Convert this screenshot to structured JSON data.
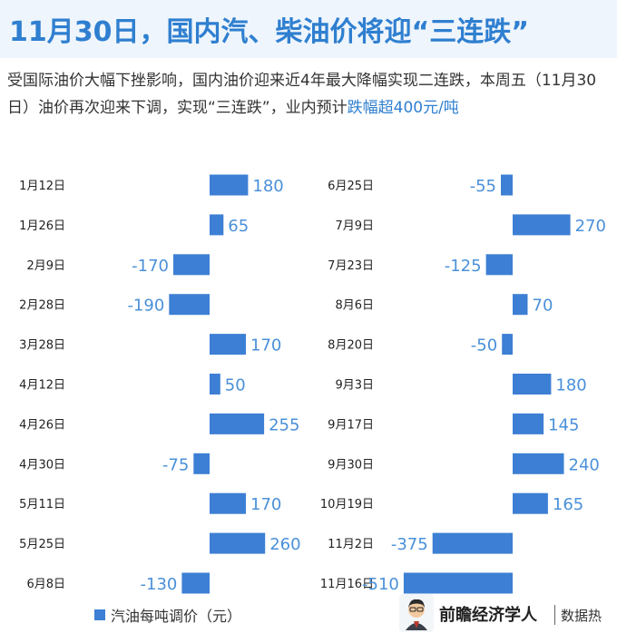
{
  "header": {
    "title": "11月30日，国内汽、柴油价将迎“三连跌”",
    "subtitle_main": "受国际油价大幅下挫影响，国内油价迎来近4年最大降幅实现二连跌，本周五（11月30日）油价再次迎来下调，实现“三连跌”，业内预计",
    "subtitle_highlight": "跌幅超400元/吨"
  },
  "legend": {
    "label": "汽油每吨调价（元）"
  },
  "brand": {
    "name": "前瞻经济学人",
    "tag": "数据热"
  },
  "colors": {
    "bar": "#3d7fd4",
    "value_label": "#4a90d9",
    "title": "#2f7fd0"
  },
  "chart_data": {
    "type": "bar",
    "orientation": "horizontal",
    "series_name": "汽油每吨调价（元）",
    "panels": [
      {
        "categories": [
          "1月12日",
          "1月26日",
          "2月9日",
          "2月28日",
          "3月28日",
          "4月12日",
          "4月26日",
          "4月30日",
          "5月11日",
          "5月25日",
          "6月8日"
        ],
        "values": [
          180,
          65,
          -170,
          -190,
          170,
          50,
          255,
          -75,
          170,
          260,
          -130
        ]
      },
      {
        "categories": [
          "6月25日",
          "7月9日",
          "7月23日",
          "8月6日",
          "8月20日",
          "9月3日",
          "9月17日",
          "9月30日",
          "10月19日",
          "11月2日",
          "11月16日"
        ],
        "values": [
          -55,
          270,
          -125,
          70,
          -50,
          180,
          145,
          240,
          165,
          -375,
          -510
        ]
      }
    ]
  }
}
